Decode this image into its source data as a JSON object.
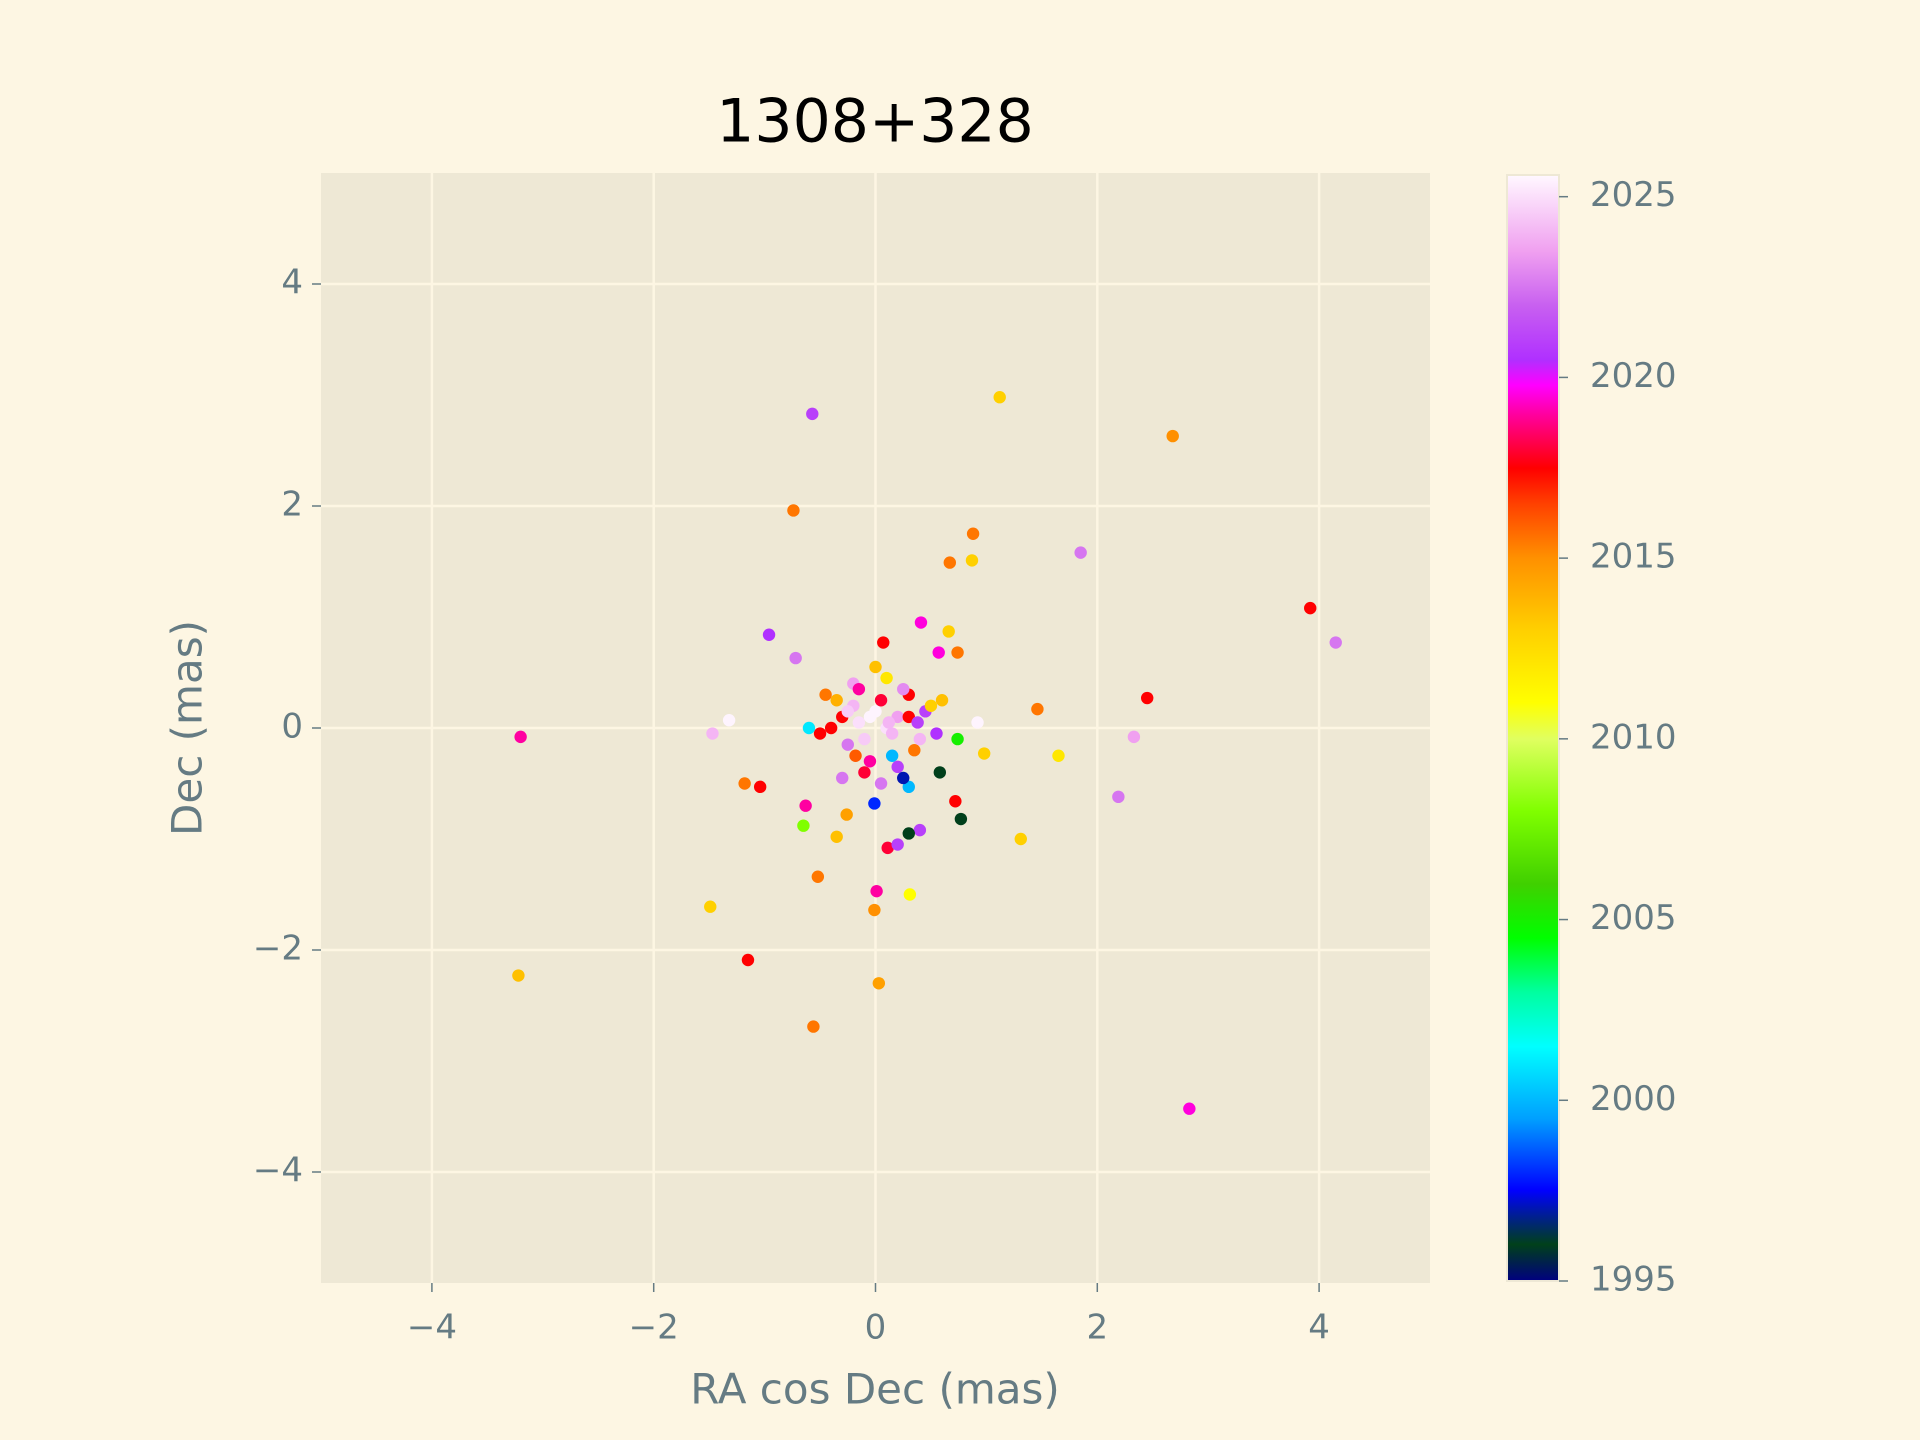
{
  "chart_data": {
    "type": "scatter",
    "title": "1308+328",
    "xlabel": "RA cos Dec (mas)",
    "ylabel": "Dec (mas)",
    "x": [
      -0.57,
      1.12,
      2.68,
      -0.74,
      0.88,
      0.67,
      0.87,
      1.85,
      3.92,
      4.15,
      2.45,
      1.46,
      2.33,
      2.19,
      1.65,
      0.98,
      1.31,
      0.77,
      -3.2,
      -1.47,
      -1.32,
      -0.96,
      -0.72,
      -0.63,
      -0.65,
      -1.18,
      -1.04,
      -0.52,
      -1.49,
      -3.22,
      -1.15,
      -0.56,
      0.03,
      -0.01,
      0.01,
      0.31,
      0.11,
      0.2,
      0.4,
      0.3,
      -0.35,
      -0.26,
      0.74,
      2.83,
      0.41,
      0.07,
      0.57,
      0.74,
      0.66,
      0.92,
      -0.01,
      0.3,
      0.58,
      0.72,
      -0.3,
      -0.2,
      0.1,
      0.2,
      -0.1,
      0.0,
      0.3,
      -0.4,
      0.45,
      -0.25,
      0.15,
      -0.15,
      0.05,
      0.35,
      -0.35,
      0.25,
      -0.05,
      0.5,
      -0.5,
      0.2,
      -0.2,
      0.1,
      -0.1,
      0.4,
      -0.3,
      0.0,
      0.15,
      -0.25,
      0.3,
      -0.45,
      0.55,
      0.05,
      -0.6,
      -0.15,
      0.25,
      0.6,
      -0.05,
      0.12,
      -0.18,
      0.38
    ],
    "y": [
      2.83,
      2.98,
      2.63,
      1.96,
      1.75,
      1.49,
      1.51,
      1.58,
      1.08,
      0.77,
      0.27,
      0.17,
      -0.08,
      -0.62,
      -0.25,
      -0.23,
      -1.0,
      -0.82,
      -0.08,
      -0.05,
      0.07,
      0.84,
      0.63,
      -0.7,
      -0.88,
      -0.5,
      -0.53,
      -1.34,
      -1.61,
      -2.23,
      -2.09,
      -2.69,
      -2.3,
      -1.64,
      -1.47,
      -1.5,
      -1.08,
      -1.05,
      -0.92,
      -0.95,
      -0.98,
      -0.78,
      -0.1,
      -3.43,
      0.95,
      0.77,
      0.68,
      0.68,
      0.87,
      0.05,
      -0.68,
      -0.53,
      -0.4,
      -0.66,
      0.1,
      0.2,
      0.0,
      0.1,
      -0.1,
      0.15,
      0.3,
      0.0,
      0.15,
      -0.15,
      -0.05,
      0.05,
      0.25,
      -0.2,
      0.25,
      0.35,
      -0.3,
      0.2,
      -0.05,
      -0.35,
      0.4,
      0.45,
      -0.4,
      -0.1,
      -0.45,
      0.55,
      -0.25,
      0.15,
      0.1,
      0.3,
      -0.05,
      -0.5,
      0.0,
      0.35,
      -0.45,
      0.25,
      0.1,
      0.05,
      -0.25,
      0.05
    ],
    "c": [
      2021,
      2013,
      2015,
      2015.5,
      2015.5,
      2015.5,
      2013,
      2022.5,
      2017.5,
      2022.5,
      2017.5,
      2015.5,
      2023.5,
      2022.5,
      2012,
      2013,
      2013,
      1996,
      2019,
      2024,
      2025.5,
      2020.5,
      2022.5,
      2019,
      2008,
      2015.5,
      2017.5,
      2015.5,
      2013,
      2013.5,
      2017.5,
      2015.5,
      2014.5,
      2015,
      2019,
      2011,
      2018,
      2021,
      2021,
      1996,
      2013.5,
      2014.5,
      2005,
      2019.5,
      2019.5,
      2017.5,
      2019.5,
      2015.5,
      2013,
      2025.5,
      1998,
      2000,
      1996,
      2017.5,
      2017.5,
      2024,
      2025,
      2023.5,
      2024.5,
      2025.5,
      2017.5,
      2017.5,
      2021,
      2022.5,
      2024,
      2025,
      2018,
      2015.5,
      2014,
      2023,
      2019,
      2013,
      2017.5,
      2021,
      2023.5,
      2012,
      2018,
      2024,
      2022.5,
      2013.5,
      2000,
      2024.5,
      2017.5,
      2015.5,
      2020.5,
      2022.5,
      2001,
      2019,
      1997,
      2013.5,
      2025.5,
      2024,
      2016,
      2021
    ],
    "colormap": "gist_ncar",
    "clim": [
      1995,
      2025.6
    ],
    "cticks": [
      1995,
      2000,
      2005,
      2010,
      2015,
      2020,
      2025
    ],
    "xlim": [
      -5,
      5
    ],
    "ylim": [
      -5,
      5
    ],
    "xticks": [
      {
        "value": -4,
        "label": "−4"
      },
      {
        "value": -2,
        "label": "−2"
      },
      0,
      2,
      4
    ],
    "yticks": [
      {
        "value": -4,
        "label": "−4"
      },
      {
        "value": -2,
        "label": "−2"
      },
      0,
      2,
      4
    ],
    "grid": true
  }
}
